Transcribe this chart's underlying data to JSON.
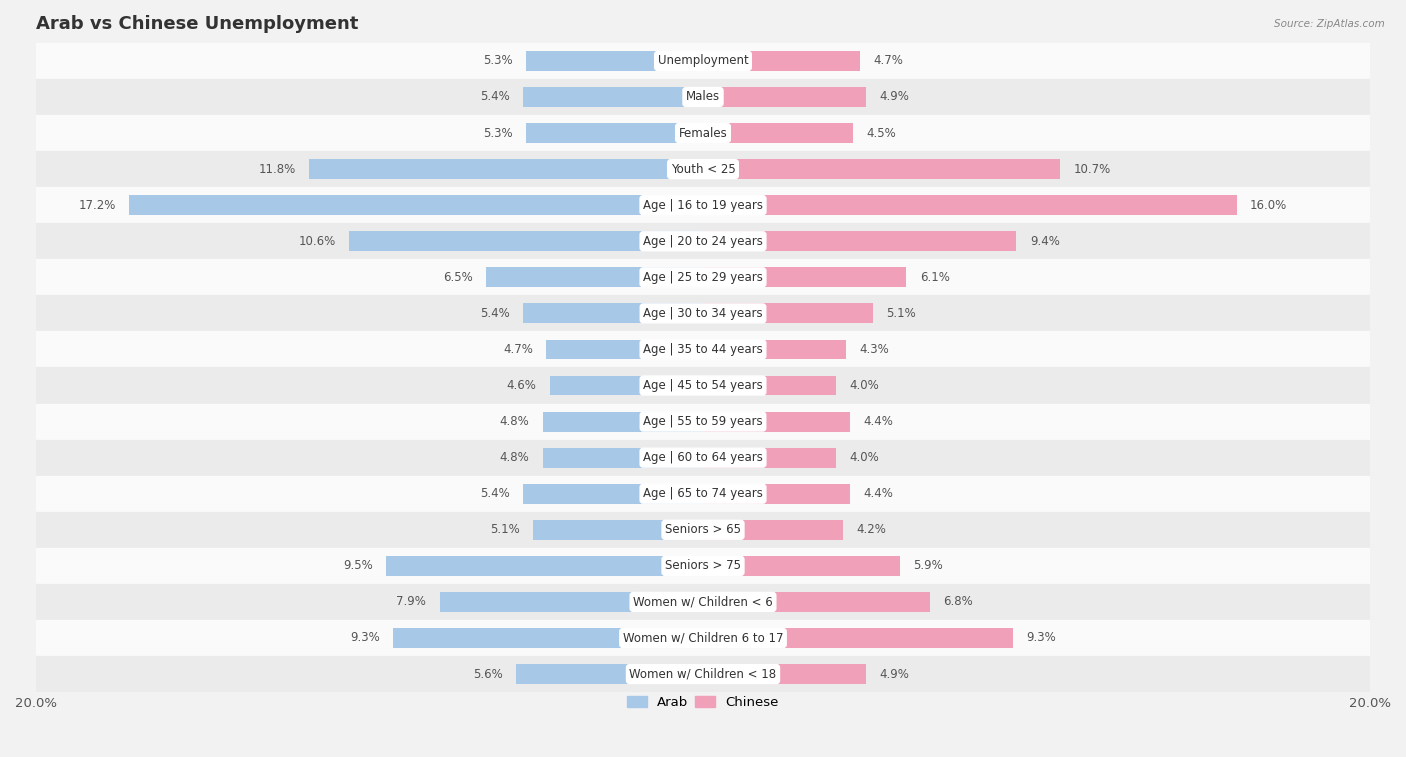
{
  "title": "Arab vs Chinese Unemployment",
  "source": "Source: ZipAtlas.com",
  "categories": [
    "Unemployment",
    "Males",
    "Females",
    "Youth < 25",
    "Age | 16 to 19 years",
    "Age | 20 to 24 years",
    "Age | 25 to 29 years",
    "Age | 30 to 34 years",
    "Age | 35 to 44 years",
    "Age | 45 to 54 years",
    "Age | 55 to 59 years",
    "Age | 60 to 64 years",
    "Age | 65 to 74 years",
    "Seniors > 65",
    "Seniors > 75",
    "Women w/ Children < 6",
    "Women w/ Children 6 to 17",
    "Women w/ Children < 18"
  ],
  "arab_values": [
    5.3,
    5.4,
    5.3,
    11.8,
    17.2,
    10.6,
    6.5,
    5.4,
    4.7,
    4.6,
    4.8,
    4.8,
    5.4,
    5.1,
    9.5,
    7.9,
    9.3,
    5.6
  ],
  "chinese_values": [
    4.7,
    4.9,
    4.5,
    10.7,
    16.0,
    9.4,
    6.1,
    5.1,
    4.3,
    4.0,
    4.4,
    4.0,
    4.4,
    4.2,
    5.9,
    6.8,
    9.3,
    4.9
  ],
  "arab_color": "#a8c8e8",
  "chinese_color": "#f0a0b8",
  "max_value": 20.0,
  "background_color": "#f2f2f2",
  "row_color_light": "#fafafa",
  "row_color_dark": "#ebebeb",
  "title_fontsize": 13,
  "label_fontsize": 8.5,
  "value_fontsize": 8.5,
  "legend_fontsize": 9.5
}
